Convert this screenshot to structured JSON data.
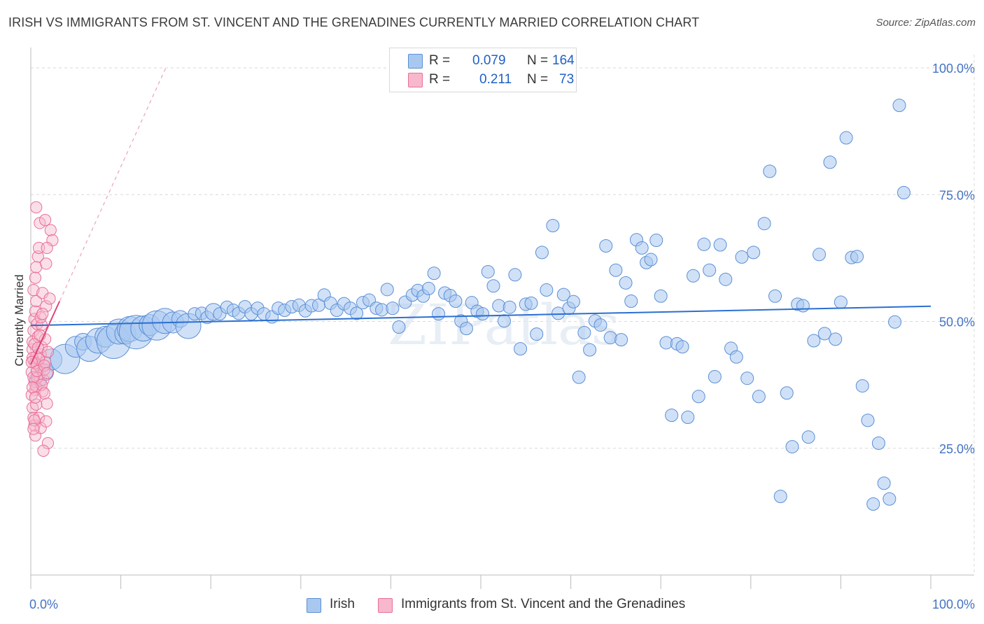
{
  "title": "IRISH VS IMMIGRANTS FROM ST. VINCENT AND THE GRENADINES CURRENTLY MARRIED CORRELATION CHART",
  "source": "Source: ZipAtlas.com",
  "watermark": "ZIPatlas",
  "legend_top": {
    "rows": [
      {
        "r_label": "R =",
        "r_value": "0.079",
        "n_label": "N =",
        "n_value": "164",
        "color": "#a9c8f0"
      },
      {
        "r_label": "R =",
        "r_value": "0.211",
        "n_label": "N =",
        "n_value": "73",
        "color": "#f7b8cc"
      }
    ]
  },
  "legend_bottom": [
    {
      "label": "Irish",
      "color": "#a9c8f0"
    },
    {
      "label": "Immigrants from St. Vincent and the Grenadines",
      "color": "#f7b8cc"
    }
  ],
  "colors": {
    "blue_fill": "#a9c8f0",
    "blue_stroke": "#5b8fd6",
    "blue_line": "#2b6fd0",
    "pink_fill": "#f7b8cc",
    "pink_stroke": "#e86f98",
    "pink_line": "#e0457a",
    "grid": "#d9d9d9",
    "tick_text": "#4472c4"
  },
  "chart_data": {
    "type": "scatter",
    "title": "IRISH VS IMMIGRANTS FROM ST. VINCENT AND THE GRENADINES CURRENTLY MARRIED CORRELATION CHART",
    "xlabel": "",
    "ylabel": "Currently Married",
    "xlim": [
      0,
      100
    ],
    "ylim": [
      0,
      105
    ],
    "x_tick_labels": [
      "0.0%",
      "100.0%"
    ],
    "y_ticks": [
      25,
      50,
      75,
      100
    ],
    "y_tick_labels": [
      "25.0%",
      "50.0%",
      "75.0%",
      "100.0%"
    ],
    "grid": true,
    "series": [
      {
        "name": "Irish",
        "R": 0.079,
        "N": 164,
        "trend": {
          "x": [
            0,
            100
          ],
          "y": [
            49.2,
            53.0
          ]
        },
        "points": [
          [
            0.8,
            38.5,
            4
          ],
          [
            1.6,
            40.0,
            4
          ],
          [
            2.3,
            42.5,
            5
          ],
          [
            3.8,
            42.6,
            7
          ],
          [
            5.0,
            45.0,
            5
          ],
          [
            5.8,
            46.0,
            4
          ],
          [
            6.5,
            44.6,
            6
          ],
          [
            7.5,
            46.2,
            6
          ],
          [
            8.3,
            47.0,
            5
          ],
          [
            9.2,
            46.0,
            8
          ],
          [
            9.8,
            48.0,
            6
          ],
          [
            10.5,
            47.6,
            5
          ],
          [
            11.0,
            48.5,
            6
          ],
          [
            11.7,
            47.9,
            8
          ],
          [
            12.5,
            48.6,
            6
          ],
          [
            13.2,
            49.3,
            5
          ],
          [
            14.0,
            49.2,
            7
          ],
          [
            14.9,
            50.1,
            6
          ],
          [
            15.8,
            49.8,
            5
          ],
          [
            16.6,
            50.5,
            4
          ],
          [
            17.5,
            49.1,
            6
          ],
          [
            18.2,
            51.5,
            3
          ],
          [
            19.0,
            51.6,
            3
          ],
          [
            19.6,
            50.8,
            3
          ],
          [
            20.3,
            51.9,
            4
          ],
          [
            21.0,
            51.5,
            3
          ],
          [
            21.8,
            52.8,
            3
          ],
          [
            22.5,
            52.2,
            3
          ],
          [
            23.1,
            51.6,
            3
          ],
          [
            23.8,
            52.9,
            3
          ],
          [
            24.5,
            51.5,
            3
          ],
          [
            25.2,
            52.6,
            3
          ],
          [
            25.9,
            51.5,
            3
          ],
          [
            26.8,
            50.9,
            3
          ],
          [
            27.5,
            52.6,
            3
          ],
          [
            28.2,
            52.2,
            3
          ],
          [
            29.0,
            52.9,
            3
          ],
          [
            29.8,
            53.2,
            3
          ],
          [
            30.5,
            52.1,
            3
          ],
          [
            31.2,
            53.1,
            3
          ],
          [
            32.0,
            53.2,
            3
          ],
          [
            32.6,
            55.2,
            3
          ],
          [
            33.3,
            53.6,
            3
          ],
          [
            34.0,
            52.2,
            3
          ],
          [
            34.8,
            53.5,
            3
          ],
          [
            35.5,
            52.6,
            3
          ],
          [
            36.2,
            51.6,
            3
          ],
          [
            36.9,
            53.7,
            3
          ],
          [
            37.6,
            54.2,
            3
          ],
          [
            38.4,
            52.6,
            3
          ],
          [
            39.0,
            52.3,
            3
          ],
          [
            39.6,
            56.3,
            3
          ],
          [
            40.2,
            52.6,
            3
          ],
          [
            40.9,
            48.9,
            3
          ],
          [
            41.6,
            53.8,
            3
          ],
          [
            42.4,
            55.2,
            3
          ],
          [
            43.0,
            56.1,
            3
          ],
          [
            43.6,
            55.0,
            3
          ],
          [
            44.2,
            56.5,
            3
          ],
          [
            44.8,
            59.5,
            3
          ],
          [
            45.3,
            51.5,
            3
          ],
          [
            46.0,
            55.6,
            3
          ],
          [
            46.6,
            55.1,
            3
          ],
          [
            47.2,
            54.0,
            3
          ],
          [
            47.8,
            50.1,
            3
          ],
          [
            48.4,
            48.6,
            3
          ],
          [
            49.0,
            53.7,
            3
          ],
          [
            49.6,
            52.0,
            3
          ],
          [
            50.2,
            51.5,
            3
          ],
          [
            50.8,
            59.8,
            3
          ],
          [
            51.4,
            57.0,
            3
          ],
          [
            52.0,
            53.1,
            3
          ],
          [
            52.6,
            50.1,
            3
          ],
          [
            53.2,
            52.8,
            3
          ],
          [
            53.8,
            59.2,
            3
          ],
          [
            54.4,
            44.6,
            3
          ],
          [
            55.0,
            53.4,
            3
          ],
          [
            55.6,
            53.6,
            3
          ],
          [
            56.2,
            47.5,
            3
          ],
          [
            56.8,
            63.6,
            3
          ],
          [
            57.3,
            56.2,
            3
          ],
          [
            58.0,
            68.9,
            3
          ],
          [
            58.6,
            51.6,
            3
          ],
          [
            59.2,
            55.3,
            3
          ],
          [
            59.8,
            52.6,
            3
          ],
          [
            60.3,
            53.9,
            3
          ],
          [
            60.9,
            39.0,
            3
          ],
          [
            61.5,
            47.8,
            3
          ],
          [
            62.1,
            44.4,
            3
          ],
          [
            62.7,
            50.1,
            3
          ],
          [
            63.3,
            49.3,
            3
          ],
          [
            63.9,
            64.9,
            3
          ],
          [
            64.4,
            46.8,
            3
          ],
          [
            65.0,
            60.1,
            3
          ],
          [
            65.6,
            46.4,
            3
          ],
          [
            66.1,
            57.6,
            3
          ],
          [
            66.7,
            54.0,
            3
          ],
          [
            67.3,
            66.1,
            3
          ],
          [
            67.9,
            64.5,
            3
          ],
          [
            68.4,
            61.6,
            3
          ],
          [
            68.9,
            62.2,
            3
          ],
          [
            69.5,
            66.0,
            3
          ],
          [
            70.0,
            55.0,
            3
          ],
          [
            70.6,
            45.8,
            3
          ],
          [
            71.2,
            31.5,
            3
          ],
          [
            71.8,
            45.6,
            3
          ],
          [
            72.4,
            45.0,
            3
          ],
          [
            73.0,
            31.1,
            3
          ],
          [
            73.6,
            59.0,
            3
          ],
          [
            74.2,
            35.2,
            3
          ],
          [
            74.8,
            65.2,
            3
          ],
          [
            75.4,
            60.1,
            3
          ],
          [
            76.0,
            39.1,
            3
          ],
          [
            76.6,
            65.1,
            3
          ],
          [
            77.2,
            58.3,
            3
          ],
          [
            77.8,
            44.7,
            3
          ],
          [
            78.4,
            43.0,
            3
          ],
          [
            79.0,
            62.7,
            3
          ],
          [
            79.6,
            38.8,
            3
          ],
          [
            80.3,
            63.6,
            3
          ],
          [
            80.9,
            35.2,
            3
          ],
          [
            81.5,
            69.3,
            3
          ],
          [
            82.1,
            79.6,
            3
          ],
          [
            82.7,
            55.0,
            3
          ],
          [
            83.3,
            15.5,
            3
          ],
          [
            84.0,
            35.9,
            3
          ],
          [
            84.6,
            25.3,
            3
          ],
          [
            85.2,
            53.4,
            3
          ],
          [
            85.8,
            53.1,
            3
          ],
          [
            86.4,
            27.2,
            3
          ],
          [
            87.0,
            46.2,
            3
          ],
          [
            87.6,
            63.2,
            3
          ],
          [
            88.2,
            47.6,
            3
          ],
          [
            88.8,
            81.4,
            3
          ],
          [
            89.4,
            46.5,
            3
          ],
          [
            90.0,
            53.8,
            3
          ],
          [
            90.6,
            86.2,
            3
          ],
          [
            91.2,
            62.6,
            3
          ],
          [
            91.8,
            62.8,
            3
          ],
          [
            92.4,
            37.3,
            3
          ],
          [
            93.0,
            30.5,
            3
          ],
          [
            93.6,
            14.0,
            3
          ],
          [
            94.2,
            26.0,
            3
          ],
          [
            94.8,
            18.1,
            3
          ],
          [
            95.4,
            15.0,
            3
          ],
          [
            96.0,
            49.9,
            3
          ],
          [
            96.5,
            92.6,
            3
          ],
          [
            97.0,
            75.4,
            3
          ]
        ]
      },
      {
        "name": "Immigrants from St. Vincent and the Grenadines",
        "R": 0.211,
        "N": 73,
        "trend": {
          "x": [
            0.0,
            3.2
          ],
          "y": [
            41.5,
            54.0
          ]
        },
        "trend_extended": {
          "x": [
            0.0,
            15.0
          ],
          "y": [
            41.5,
            100.0
          ]
        },
        "points": [
          [
            0.1,
            40.0,
            3
          ],
          [
            0.2,
            44.5,
            3
          ],
          [
            0.3,
            42.3,
            3
          ],
          [
            0.4,
            38.0,
            3
          ],
          [
            0.5,
            36.5,
            3
          ],
          [
            0.6,
            43.1,
            3
          ],
          [
            0.7,
            41.5,
            3
          ],
          [
            0.2,
            46.0,
            3
          ],
          [
            0.3,
            48.2,
            3
          ],
          [
            0.4,
            50.5,
            3
          ],
          [
            0.5,
            52.0,
            3
          ],
          [
            0.6,
            54.0,
            3
          ],
          [
            0.7,
            49.5,
            3
          ],
          [
            0.8,
            47.0,
            3
          ],
          [
            0.1,
            35.5,
            3
          ],
          [
            0.2,
            33.0,
            3
          ],
          [
            0.3,
            31.0,
            3
          ],
          [
            0.4,
            29.5,
            3
          ],
          [
            0.5,
            27.5,
            3
          ],
          [
            0.6,
            37.2,
            3
          ],
          [
            0.9,
            39.2,
            3
          ],
          [
            1.0,
            41.0,
            3
          ],
          [
            1.1,
            43.5,
            3
          ],
          [
            1.2,
            45.0,
            3
          ],
          [
            1.3,
            36.2,
            3
          ],
          [
            1.4,
            38.5,
            3
          ],
          [
            1.5,
            40.5,
            3
          ],
          [
            1.6,
            42.0,
            3
          ],
          [
            0.3,
            56.2,
            3
          ],
          [
            0.5,
            58.6,
            3
          ],
          [
            0.6,
            60.7,
            3
          ],
          [
            0.8,
            62.8,
            3
          ],
          [
            0.9,
            64.5,
            3
          ],
          [
            1.0,
            69.4,
            3
          ],
          [
            0.6,
            72.5,
            3
          ],
          [
            1.6,
            70.0,
            3
          ],
          [
            1.7,
            61.4,
            3
          ],
          [
            2.2,
            68.0,
            3
          ],
          [
            2.4,
            66.0,
            3
          ],
          [
            1.8,
            64.5,
            3
          ],
          [
            1.3,
            55.6,
            3
          ],
          [
            1.7,
            53.0,
            3
          ],
          [
            1.2,
            49.3,
            3
          ],
          [
            1.6,
            46.5,
            3
          ],
          [
            1.9,
            44.0,
            3
          ],
          [
            2.1,
            54.5,
            3
          ],
          [
            0.9,
            31.0,
            3
          ],
          [
            1.1,
            29.0,
            3
          ],
          [
            1.7,
            30.3,
            3
          ],
          [
            1.9,
            26.0,
            3
          ],
          [
            1.4,
            24.5,
            3
          ],
          [
            1.8,
            33.8,
            3
          ],
          [
            0.4,
            45.5,
            3
          ],
          [
            0.7,
            38.9,
            3
          ],
          [
            1.2,
            37.5,
            3
          ],
          [
            1.5,
            35.8,
            3
          ],
          [
            0.2,
            42.8,
            3
          ],
          [
            0.3,
            39.0,
            3
          ],
          [
            0.8,
            44.8,
            3
          ],
          [
            1.0,
            47.3,
            3
          ],
          [
            0.5,
            41.8,
            3
          ],
          [
            0.7,
            40.2,
            3
          ],
          [
            0.9,
            42.6,
            3
          ],
          [
            1.1,
            50.8,
            3
          ],
          [
            1.3,
            51.5,
            3
          ],
          [
            0.6,
            33.6,
            3
          ],
          [
            0.4,
            30.5,
            3
          ],
          [
            0.3,
            28.8,
            3
          ],
          [
            1.5,
            41.3,
            3
          ],
          [
            1.8,
            39.8,
            3
          ],
          [
            0.2,
            37.0,
            3
          ],
          [
            0.1,
            42.0,
            3
          ],
          [
            0.5,
            35.0,
            3
          ]
        ]
      }
    ]
  }
}
